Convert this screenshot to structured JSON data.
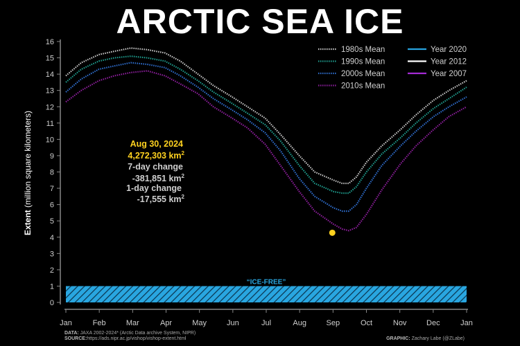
{
  "title": "ARCTIC SEA ICE",
  "chart_data": {
    "type": "line",
    "title": "ARCTIC SEA ICE",
    "ylabel_bold": "Extent",
    "ylabel_rest": " (million square kilometers)",
    "ylim": [
      0,
      16
    ],
    "yticks": [
      0,
      1,
      2,
      3,
      4,
      5,
      6,
      7,
      8,
      9,
      10,
      11,
      12,
      13,
      14,
      15,
      16
    ],
    "xticks": [
      "Jan",
      "Feb",
      "Mar",
      "Apr",
      "May",
      "Jun",
      "Jul",
      "Aug",
      "Sep",
      "Oct",
      "Nov",
      "Dec",
      "Jan"
    ],
    "grid": false,
    "legend_position": "top-right",
    "legend": [
      {
        "name": "1980s Mean",
        "style": "dotted",
        "color": "#c8c8c8"
      },
      {
        "name": "1990s Mean",
        "style": "dotted",
        "color": "#1f9e8f"
      },
      {
        "name": "2000s Mean",
        "style": "dotted",
        "color": "#2f6fd0"
      },
      {
        "name": "2010s Mean",
        "style": "dotted",
        "color": "#8e1f9e"
      },
      {
        "name": "Year 2020",
        "style": "solid",
        "color": "#27a3df"
      },
      {
        "name": "Year 2012",
        "style": "solid",
        "color": "#ffffff"
      },
      {
        "name": "Year 2007",
        "style": "solid",
        "color": "#a52bd6"
      }
    ],
    "series": [
      {
        "name": "1980s Mean",
        "color": "#c8c8c8",
        "style": "dotted",
        "x": [
          1,
          15,
          31,
          45,
          60,
          75,
          91,
          105,
          121,
          135,
          152,
          166,
          182,
          196,
          213,
          227,
          244,
          252,
          258,
          265,
          274,
          288,
          305,
          319,
          335,
          349,
          365
        ],
        "y": [
          13.9,
          14.7,
          15.2,
          15.4,
          15.6,
          15.5,
          15.3,
          14.8,
          14.0,
          13.3,
          12.6,
          12.0,
          11.3,
          10.3,
          9.0,
          8.0,
          7.5,
          7.3,
          7.3,
          7.7,
          8.6,
          9.6,
          10.6,
          11.5,
          12.4,
          13.0,
          13.6
        ]
      },
      {
        "name": "1990s Mean",
        "color": "#1f9e8f",
        "style": "dotted",
        "x": [
          1,
          15,
          31,
          45,
          60,
          75,
          91,
          105,
          121,
          135,
          152,
          166,
          182,
          196,
          213,
          227,
          244,
          252,
          258,
          265,
          274,
          288,
          305,
          319,
          335,
          349,
          365
        ],
        "y": [
          13.5,
          14.3,
          14.8,
          15.0,
          15.1,
          15.0,
          14.8,
          14.3,
          13.6,
          12.9,
          12.2,
          11.6,
          10.9,
          9.9,
          8.4,
          7.3,
          6.8,
          6.7,
          6.7,
          7.1,
          8.0,
          9.1,
          10.1,
          11.0,
          11.9,
          12.5,
          13.2
        ]
      },
      {
        "name": "2000s Mean",
        "color": "#2f6fd0",
        "style": "dotted",
        "x": [
          1,
          15,
          31,
          45,
          60,
          75,
          91,
          105,
          121,
          135,
          152,
          166,
          182,
          196,
          213,
          227,
          244,
          252,
          258,
          265,
          274,
          288,
          305,
          319,
          335,
          349,
          365
        ],
        "y": [
          12.9,
          13.7,
          14.3,
          14.5,
          14.7,
          14.6,
          14.4,
          13.9,
          13.2,
          12.5,
          11.8,
          11.2,
          10.4,
          9.3,
          7.6,
          6.5,
          5.8,
          5.6,
          5.6,
          6.0,
          7.0,
          8.4,
          9.6,
          10.5,
          11.4,
          12.0,
          12.6
        ]
      },
      {
        "name": "2010s Mean",
        "color": "#8e1f9e",
        "style": "dotted",
        "x": [
          1,
          15,
          31,
          45,
          60,
          75,
          91,
          105,
          121,
          135,
          152,
          166,
          182,
          196,
          213,
          227,
          244,
          252,
          258,
          265,
          274,
          288,
          305,
          319,
          335,
          349,
          365
        ],
        "y": [
          12.3,
          13.0,
          13.6,
          13.9,
          14.1,
          14.2,
          13.9,
          13.4,
          12.8,
          12.0,
          11.3,
          10.7,
          9.7,
          8.4,
          6.8,
          5.6,
          4.8,
          4.5,
          4.4,
          4.6,
          5.4,
          6.9,
          8.5,
          9.6,
          10.6,
          11.4,
          12.0
        ]
      }
    ],
    "current_point": {
      "x": 243,
      "y": 4.272303,
      "color": "#ffd21f"
    },
    "xcoord_unit": "day of year (1 = Jan 1, 365 = Jan 1 of next year)",
    "ice_free": {
      "label": "“ICE-FREE”",
      "y_max": 1,
      "color": "#29a6e0"
    }
  },
  "annotation": {
    "date": "Aug 30, 2024",
    "value": "4,272,303 km",
    "change7_label": "7-day change",
    "change7_value": "-381,851 km",
    "change1_label": "1-day change",
    "change1_value": "-17,555 km",
    "superscript": "2"
  },
  "credits": {
    "data_label": "DATA:",
    "data_text": " JAXA 2002-2024* (Arctic Data archive System, NIPR)",
    "source_label": "SOURCE:",
    "source_text": "https://ads.nipr.ac.jp/vishop/vishop-extent.html",
    "graphic_label": "GRAPHIC:",
    "graphic_text": " Zachary Labe (@ZLabe)"
  },
  "colors": {
    "background": "#000000",
    "current_value": "#ffd21f",
    "axis": "#888888"
  }
}
